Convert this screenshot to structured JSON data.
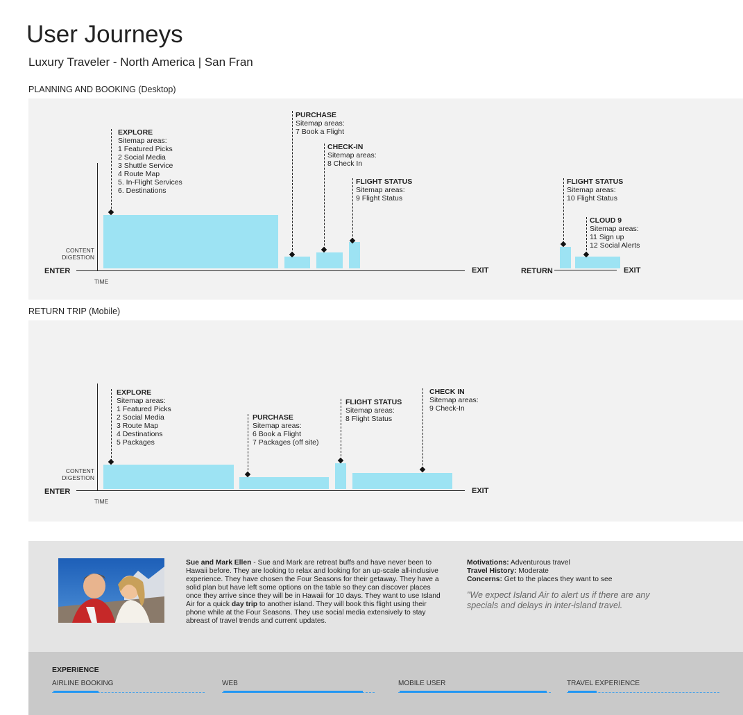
{
  "header": {
    "title": "User Journeys",
    "subtitle": "Luxury Traveler - North America | San Fran"
  },
  "planning": {
    "section_title": "PLANNING AND BOOKING (Desktop)",
    "enter": "ENTER",
    "exit": "EXIT",
    "return": "RETURN",
    "exit2": "EXIT",
    "time": "TIME",
    "digestion": [
      "CONTENT",
      "DIGESTION"
    ],
    "annotations": [
      {
        "title": "EXPLORE",
        "lines": [
          "Sitemap areas:",
          "1 Featured Picks",
          "2 Social Media",
          "3 Shuttle Service",
          "4 Route Map",
          "5. In-Flight Services",
          "6. Destinations"
        ]
      },
      {
        "title": "PURCHASE",
        "lines": [
          "Sitemap areas:",
          "7 Book a Flight"
        ]
      },
      {
        "title": "CHECK-IN",
        "lines": [
          "Sitemap areas:",
          "8 Check In"
        ]
      },
      {
        "title": "FLIGHT STATUS",
        "lines": [
          "Sitemap areas:",
          "9 Flight Status"
        ]
      },
      {
        "title": "FLIGHT STATUS",
        "lines": [
          "Sitemap areas:",
          "10 Flight Status"
        ]
      },
      {
        "title": "CLOUD 9",
        "lines": [
          "Sitemap areas:",
          "11 Sign up",
          "12 Social Alerts"
        ]
      }
    ]
  },
  "return_trip": {
    "section_title": "RETURN TRIP (Mobile)",
    "enter": "ENTER",
    "exit": "EXIT",
    "time": "TIME",
    "digestion": [
      "CONTENT",
      "DIGESTION"
    ],
    "annotations": [
      {
        "title": "EXPLORE",
        "lines": [
          "Sitemap areas:",
          "1 Featured Picks",
          "2 Social Media",
          "3 Route Map",
          "4 Destinations",
          "5 Packages"
        ]
      },
      {
        "title": "PURCHASE",
        "lines": [
          "Sitemap areas:",
          "6 Book a Flight",
          "7 Packages (off site)"
        ]
      },
      {
        "title": "FLIGHT STATUS",
        "lines": [
          "Sitemap areas:",
          "8 Flight Status"
        ]
      },
      {
        "title": "CHECK IN",
        "lines": [
          "Sitemap areas:",
          "9 Check-In"
        ]
      }
    ]
  },
  "persona": {
    "name": "Sue and Mark Ellen",
    "bio_pre": " - Sue and Mark are retreat buffs and have never been to Hawaii before. They are looking to relax and looking for an up-scale all-inclusive experience.  They have chosen the Four Seasons for their getaway. They have a solid plan but have left some options on the table so they can discover places once they arrive since they will be in Hawaii for 10 days. They want to use Island Air for a quick ",
    "bio_bold": "day trip",
    "bio_post": " to another island. They will book this flight using their phone while at the Four Seasons. They use social media extensively to stay abreast of travel trends and current updates.",
    "motivations_label": "Motivations:",
    "motivations": " Adventurous travel",
    "history_label": "Travel History:",
    "history": " Moderate",
    "concerns_label": "Concerns:",
    "concerns": " Get to the places they want to see",
    "quote": "\"We expect Island Air to alert us if there are any specials and delays in inter-island travel."
  },
  "experience": {
    "title": "EXPERIENCE",
    "items": [
      {
        "label": "AIRLINE BOOKING",
        "level": 0.3
      },
      {
        "label": "WEB",
        "level": 0.93
      },
      {
        "label": "MOBILE USER",
        "level": 0.98
      },
      {
        "label": "TRAVEL EXPERIENCE",
        "level": 0.19
      }
    ]
  },
  "colors": {
    "bar": "#9de3f3",
    "panel": "#f2f2f2",
    "experience_fill": "#2196f3"
  }
}
